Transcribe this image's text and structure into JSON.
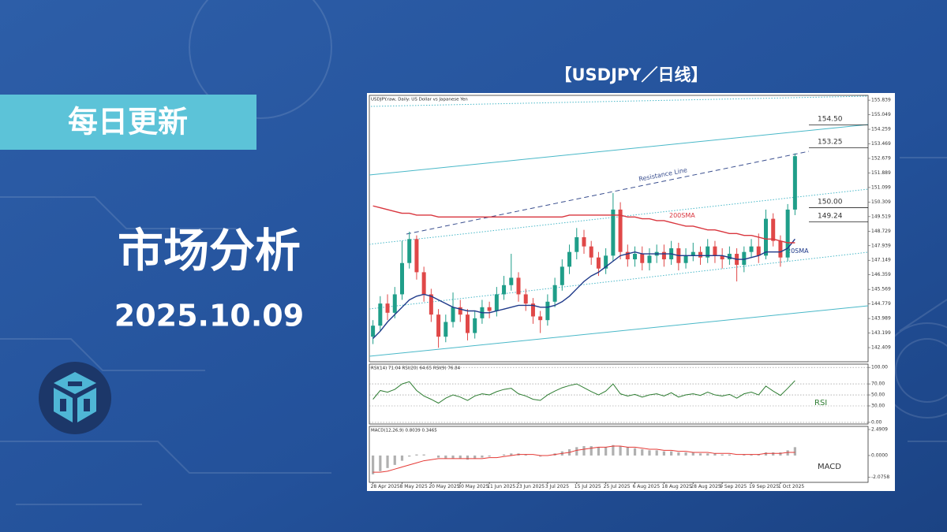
{
  "header": {
    "badge": "每日更新",
    "title": "市场分析",
    "date": "2025.10.09",
    "chart_caption": "【USDJPY／日线】"
  },
  "chart_data": [
    {
      "type": "candlestick",
      "title": "USDJPY.raw, Daily: US Dollar vs Japanese Yen",
      "categories": [
        "28 Apr 2025",
        null,
        null,
        null,
        "8 May 2025",
        null,
        null,
        null,
        "20 May 2025",
        null,
        null,
        null,
        "30 May 2025",
        null,
        null,
        null,
        "11 Jun 2025",
        null,
        null,
        null,
        "23 Jun 2025",
        null,
        null,
        null,
        "3 Jul 2025",
        null,
        null,
        null,
        "15 Jul 2025",
        null,
        null,
        null,
        "25 Jul 2025",
        null,
        null,
        null,
        "6 Aug 2025",
        null,
        null,
        null,
        "18 Aug 2025",
        null,
        null,
        null,
        "28 Aug 2025",
        null,
        null,
        null,
        "9 Sep 2025",
        null,
        null,
        null,
        "19 Sep 2025",
        null,
        null,
        null,
        "1 Oct 2025",
        null,
        null
      ],
      "open": [
        143.0,
        143.6,
        144.8,
        144.3,
        145.3,
        147.0,
        148.3,
        146.5,
        145.3,
        144.2,
        143.0,
        143.8,
        144.6,
        144.2,
        143.2,
        144.0,
        144.6,
        144.4,
        145.3,
        145.8,
        146.2,
        145.3,
        144.8,
        144.1,
        143.9,
        144.9,
        145.8,
        146.8,
        147.6,
        148.4,
        147.9,
        147.3,
        146.7,
        147.4,
        149.9,
        147.6,
        147.2,
        147.5,
        147.0,
        147.4,
        147.6,
        147.2,
        147.8,
        147.0,
        147.4,
        147.6,
        147.3,
        147.9,
        147.4,
        147.2,
        147.5,
        146.9,
        147.6,
        147.9,
        147.4,
        149.4,
        148.2,
        147.3,
        149.9
      ],
      "high": [
        143.9,
        145.2,
        145.3,
        145.7,
        148.2,
        148.7,
        148.5,
        146.8,
        145.6,
        144.5,
        144.2,
        145.4,
        145.0,
        144.5,
        144.4,
        145.0,
        144.9,
        145.7,
        146.3,
        147.5,
        146.5,
        145.6,
        145.1,
        144.4,
        145.3,
        146.2,
        147.2,
        148.0,
        148.9,
        148.8,
        148.2,
        147.6,
        147.8,
        150.8,
        150.3,
        148.0,
        147.9,
        147.9,
        147.8,
        148.0,
        148.0,
        148.2,
        148.1,
        147.8,
        148.1,
        147.9,
        148.3,
        148.2,
        147.8,
        147.9,
        147.8,
        147.9,
        148.3,
        148.6,
        149.9,
        149.7,
        148.5,
        150.2,
        152.95
      ],
      "low": [
        142.6,
        143.3,
        143.9,
        144.0,
        145.0,
        146.7,
        146.1,
        144.9,
        143.8,
        142.4,
        142.7,
        143.5,
        143.8,
        142.8,
        142.9,
        143.7,
        144.0,
        144.1,
        145.0,
        145.5,
        144.9,
        144.4,
        143.7,
        143.2,
        143.6,
        144.6,
        145.5,
        146.4,
        147.2,
        147.5,
        146.9,
        146.3,
        146.4,
        147.1,
        147.2,
        146.8,
        146.8,
        146.6,
        146.6,
        147.0,
        146.8,
        146.9,
        146.6,
        146.7,
        147.1,
        146.9,
        147.0,
        147.0,
        146.7,
        146.9,
        146.0,
        146.5,
        147.3,
        147.0,
        147.2,
        147.9,
        146.8,
        147.1,
        149.6
      ],
      "close": [
        143.6,
        144.8,
        144.3,
        145.3,
        147.0,
        148.3,
        146.5,
        145.3,
        144.2,
        143.0,
        143.8,
        144.6,
        144.2,
        143.2,
        144.0,
        144.6,
        144.4,
        145.3,
        145.8,
        146.2,
        145.3,
        144.8,
        144.1,
        143.9,
        144.9,
        145.8,
        146.8,
        147.6,
        148.4,
        147.9,
        147.3,
        146.7,
        147.4,
        149.9,
        147.6,
        147.2,
        147.5,
        147.0,
        147.4,
        147.6,
        147.2,
        147.8,
        147.0,
        147.4,
        147.6,
        147.3,
        147.9,
        147.4,
        147.2,
        147.5,
        146.9,
        147.6,
        147.9,
        147.4,
        149.4,
        148.2,
        147.3,
        149.9,
        152.8
      ],
      "up_color": "#1f9e89",
      "down_color": "#e04848",
      "series": [
        {
          "name": "20SMA",
          "color": "#1f3a8a",
          "values": [
            142.9,
            143.3,
            143.8,
            144.2,
            144.6,
            145.0,
            145.2,
            145.3,
            145.2,
            145.0,
            144.8,
            144.6,
            144.5,
            144.4,
            144.4,
            144.3,
            144.3,
            144.4,
            144.5,
            144.6,
            144.7,
            144.7,
            144.7,
            144.6,
            144.6,
            144.7,
            144.9,
            145.2,
            145.6,
            146.0,
            146.3,
            146.5,
            146.8,
            147.1,
            147.4,
            147.5,
            147.6,
            147.5,
            147.5,
            147.5,
            147.5,
            147.5,
            147.4,
            147.4,
            147.4,
            147.4,
            147.4,
            147.4,
            147.4,
            147.3,
            147.2,
            147.2,
            147.3,
            147.4,
            147.6,
            147.6,
            147.6,
            147.8,
            148.3
          ]
        },
        {
          "name": "200SMA",
          "color": "#d9363e",
          "values": [
            150.1,
            150.0,
            149.9,
            149.8,
            149.7,
            149.7,
            149.6,
            149.6,
            149.6,
            149.5,
            149.5,
            149.5,
            149.5,
            149.5,
            149.5,
            149.5,
            149.5,
            149.5,
            149.5,
            149.5,
            149.5,
            149.5,
            149.5,
            149.5,
            149.5,
            149.5,
            149.5,
            149.6,
            149.6,
            149.6,
            149.6,
            149.6,
            149.6,
            149.6,
            149.6,
            149.5,
            149.5,
            149.4,
            149.4,
            149.3,
            149.3,
            149.2,
            149.1,
            149.0,
            149.0,
            148.9,
            148.8,
            148.8,
            148.7,
            148.6,
            148.6,
            148.5,
            148.5,
            148.4,
            148.3,
            148.3,
            148.2,
            148.1,
            148.1
          ]
        }
      ],
      "levels": [
        {
          "value": 154.5,
          "label": "154.50"
        },
        {
          "value": 153.25,
          "label": "153.25"
        },
        {
          "value": 150,
          "label": "150.00"
        },
        {
          "value": 149.24,
          "label": "149.24"
        }
      ],
      "annotations": [
        "Resistance Line"
      ],
      "ylim": [
        141.64,
        156.1
      ],
      "yticks": [
        155.839,
        155.049,
        154.259,
        153.469,
        152.679,
        151.889,
        151.099,
        150.309,
        149.519,
        148.729,
        147.939,
        147.149,
        146.359,
        145.569,
        144.779,
        143.989,
        143.199,
        142.409
      ],
      "grid": false
    },
    {
      "type": "line",
      "title": "RSI(14) 71.04 RSI(20) 64.65 RSI(9) 76.84",
      "label": "RSI",
      "series": [
        {
          "color": "#2e7d32",
          "values": [
            42,
            58,
            55,
            60,
            70,
            74,
            58,
            48,
            42,
            35,
            44,
            50,
            46,
            40,
            48,
            52,
            50,
            56,
            60,
            62,
            52,
            48,
            42,
            40,
            50,
            57,
            63,
            67,
            70,
            63,
            56,
            50,
            57,
            70,
            52,
            48,
            51,
            46,
            50,
            52,
            48,
            54,
            46,
            50,
            52,
            49,
            55,
            50,
            48,
            51,
            44,
            52,
            55,
            50,
            66,
            57,
            49,
            62,
            76
          ]
        }
      ],
      "ylim": [
        -3,
        106
      ],
      "yticks": [
        {
          "value": 100,
          "label": "100.00"
        },
        {
          "value": 70,
          "label": "70.00"
        },
        {
          "value": 50,
          "label": "50.00"
        },
        {
          "value": 30,
          "label": "30.00"
        },
        {
          "value": 0,
          "label": "0.00"
        }
      ],
      "grid": true
    },
    {
      "type": "macd",
      "title": "MACD(12,26,9) 0.8039 0.3465",
      "label": "MACD",
      "color": "#b0b0b0",
      "values": [
        -1.8,
        -1.5,
        -1.2,
        -0.9,
        -0.5,
        -0.1,
        0.1,
        0.1,
        0.0,
        -0.2,
        -0.3,
        -0.3,
        -0.3,
        -0.4,
        -0.3,
        -0.2,
        -0.1,
        0.0,
        0.1,
        0.2,
        0.2,
        0.1,
        0.0,
        -0.1,
        0.0,
        0.2,
        0.4,
        0.6,
        0.8,
        0.9,
        0.9,
        0.8,
        0.8,
        1.0,
        0.9,
        0.8,
        0.7,
        0.6,
        0.5,
        0.5,
        0.4,
        0.4,
        0.3,
        0.3,
        0.3,
        0.2,
        0.2,
        0.2,
        0.1,
        0.1,
        0.0,
        0.1,
        0.1,
        0.1,
        0.3,
        0.3,
        0.3,
        0.5,
        0.8
      ],
      "signal": {
        "color": "#e53935",
        "values": [
          -1.6,
          -1.6,
          -1.5,
          -1.3,
          -1.1,
          -0.9,
          -0.7,
          -0.5,
          -0.4,
          -0.3,
          -0.3,
          -0.3,
          -0.3,
          -0.3,
          -0.3,
          -0.3,
          -0.2,
          -0.2,
          -0.1,
          0.0,
          0.1,
          0.1,
          0.1,
          0.0,
          0.0,
          0.1,
          0.2,
          0.3,
          0.5,
          0.6,
          0.7,
          0.8,
          0.8,
          0.9,
          0.9,
          0.8,
          0.8,
          0.7,
          0.6,
          0.6,
          0.5,
          0.5,
          0.4,
          0.4,
          0.3,
          0.3,
          0.3,
          0.2,
          0.2,
          0.2,
          0.1,
          0.1,
          0.1,
          0.1,
          0.2,
          0.2,
          0.2,
          0.3,
          0.3
        ]
      },
      "ylim": [
        -2.57,
        2.79
      ],
      "yticks": [
        2.4909,
        {
          "value": 0,
          "label": "0.0000"
        },
        -2.0758
      ],
      "grid": false
    }
  ]
}
